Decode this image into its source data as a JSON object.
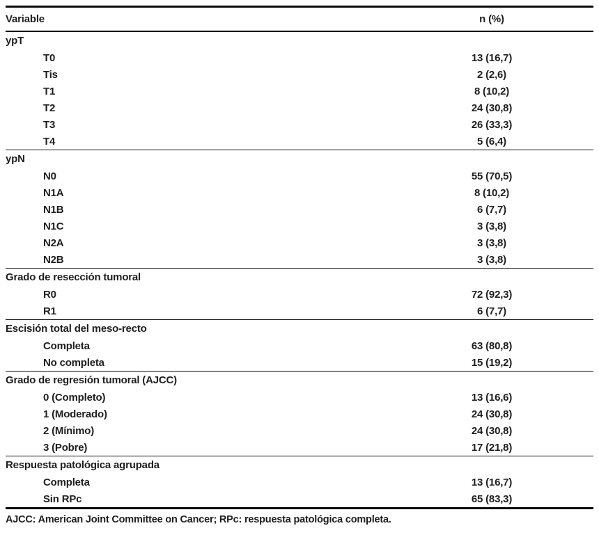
{
  "table": {
    "columns": {
      "variable": "Variable",
      "n_pct": "n (%)"
    },
    "sections": [
      {
        "header": "ypT",
        "rows": [
          {
            "label": "T0",
            "value": "13 (16,7)"
          },
          {
            "label": "Tis",
            "value": "2 (2,6)"
          },
          {
            "label": "T1",
            "value": "8 (10,2)"
          },
          {
            "label": "T2",
            "value": "24 (30,8)"
          },
          {
            "label": "T3",
            "value": "26 (33,3)"
          },
          {
            "label": "T4",
            "value": "5 (6,4)"
          }
        ]
      },
      {
        "header": "ypN",
        "rows": [
          {
            "label": "N0",
            "value": "55 (70,5)"
          },
          {
            "label": "N1A",
            "value": "8 (10,2)"
          },
          {
            "label": "N1B",
            "value": "6 (7,7)"
          },
          {
            "label": "N1C",
            "value": "3 (3,8)"
          },
          {
            "label": "N2A",
            "value": "3 (3,8)"
          },
          {
            "label": "N2B",
            "value": "3 (3,8)"
          }
        ]
      },
      {
        "header": "Grado de resección tumoral",
        "rows": [
          {
            "label": "R0",
            "value": "72 (92,3)"
          },
          {
            "label": "R1",
            "value": "6 (7,7)"
          }
        ]
      },
      {
        "header": "Escisión total del meso-recto",
        "rows": [
          {
            "label": "Completa",
            "value": "63 (80,8)"
          },
          {
            "label": "No completa",
            "value": "15 (19,2)"
          }
        ]
      },
      {
        "header": "Grado de regresión tumoral (AJCC)",
        "rows": [
          {
            "label": "0 (Completo)",
            "value": "13 (16,6)"
          },
          {
            "label": "1 (Moderado)",
            "value": "24 (30,8)"
          },
          {
            "label": "2 (Mínimo)",
            "value": "24 (30,8)"
          },
          {
            "label": "3 (Pobre)",
            "value": "17 (21,8)"
          }
        ]
      },
      {
        "header": "Respuesta patológica agrupada",
        "rows": [
          {
            "label": "Completa",
            "value": "13 (16,7)"
          },
          {
            "label": "Sin RPc",
            "value": "65 (83,3)"
          }
        ]
      }
    ],
    "footnote": "AJCC: American Joint Committee on Cancer; RPc: respuesta patológica completa."
  },
  "colors": {
    "text": "#1e1e1e",
    "rule": "#0a0a0a",
    "background": "#ffffff"
  }
}
